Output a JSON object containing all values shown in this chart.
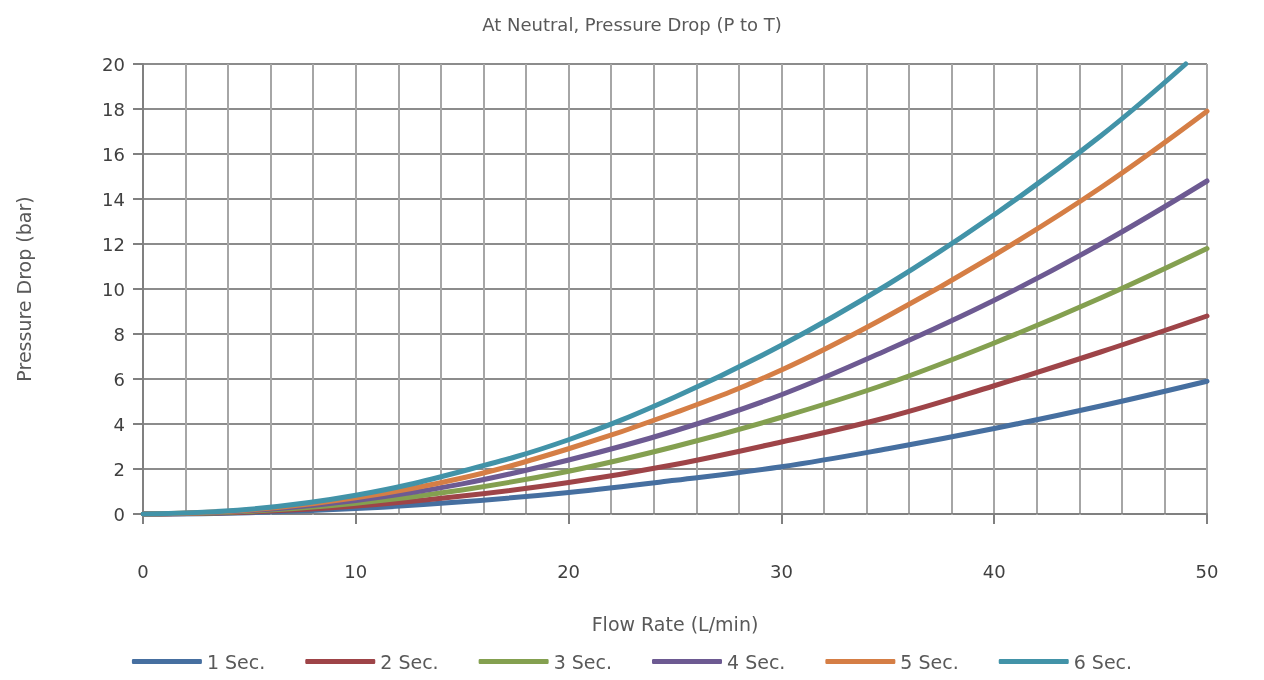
{
  "chart_data": {
    "type": "line",
    "title": "At Neutral, Pressure Drop (P to T)",
    "xlabel": "Flow Rate (L/min)",
    "ylabel": "Pressure Drop (bar)",
    "x": [
      0,
      5,
      10,
      15,
      20,
      25,
      30,
      35,
      40,
      45,
      50
    ],
    "series": [
      {
        "name": "1 Sec.",
        "color": "#466fa0",
        "values": [
          0,
          0.06,
          0.24,
          0.54,
          0.96,
          1.5,
          2.1,
          2.9,
          3.8,
          4.8,
          5.9
        ]
      },
      {
        "name": "2 Sec.",
        "color": "#9e4448",
        "values": [
          0,
          0.09,
          0.35,
          0.8,
          1.4,
          2.2,
          3.2,
          4.3,
          5.7,
          7.2,
          8.8
        ]
      },
      {
        "name": "3 Sec.",
        "color": "#84a050",
        "values": [
          0,
          0.12,
          0.48,
          1.07,
          1.9,
          3.0,
          4.3,
          5.8,
          7.6,
          9.6,
          11.8
        ]
      },
      {
        "name": "4 Sec.",
        "color": "#6d5a92",
        "values": [
          0,
          0.15,
          0.6,
          1.34,
          2.4,
          3.7,
          5.3,
          7.3,
          9.5,
          12.0,
          14.8
        ]
      },
      {
        "name": "5 Sec.",
        "color": "#d57e45",
        "values": [
          0,
          0.18,
          0.72,
          1.6,
          2.9,
          4.5,
          6.4,
          8.8,
          11.5,
          14.5,
          17.9
        ]
      },
      {
        "name": "6 Sec.",
        "color": "#4293a8",
        "x": [
          0,
          5,
          10,
          15,
          20,
          25,
          30,
          35,
          40,
          45,
          49
        ],
        "values": [
          0,
          0.21,
          0.83,
          1.9,
          3.3,
          5.2,
          7.5,
          10.2,
          13.3,
          16.8,
          20
        ]
      }
    ],
    "xlim": [
      0,
      50
    ],
    "xticks": [
      0,
      {
        "value": 2,
        "label": null
      },
      {
        "value": 4,
        "label": null
      },
      {
        "value": 6,
        "label": null
      },
      {
        "value": 8,
        "label": null
      },
      10,
      {
        "value": 12,
        "label": null
      },
      {
        "value": 14,
        "label": null
      },
      {
        "value": 16,
        "label": null
      },
      {
        "value": 18,
        "label": null
      },
      20,
      {
        "value": 22,
        "label": null
      },
      {
        "value": 24,
        "label": null
      },
      {
        "value": 26,
        "label": null
      },
      {
        "value": 28,
        "label": null
      },
      30,
      {
        "value": 32,
        "label": null
      },
      {
        "value": 34,
        "label": null
      },
      {
        "value": 36,
        "label": null
      },
      {
        "value": 38,
        "label": null
      },
      40,
      {
        "value": 42,
        "label": null
      },
      {
        "value": 44,
        "label": null
      },
      {
        "value": 46,
        "label": null
      },
      {
        "value": 48,
        "label": null
      },
      50
    ],
    "ylim": [
      0,
      20
    ],
    "yticks": [
      0,
      2,
      4,
      6,
      8,
      10,
      12,
      14,
      16,
      18,
      20
    ],
    "grid": true,
    "legend": "bottom",
    "marker": "none",
    "line_style": "solid"
  }
}
